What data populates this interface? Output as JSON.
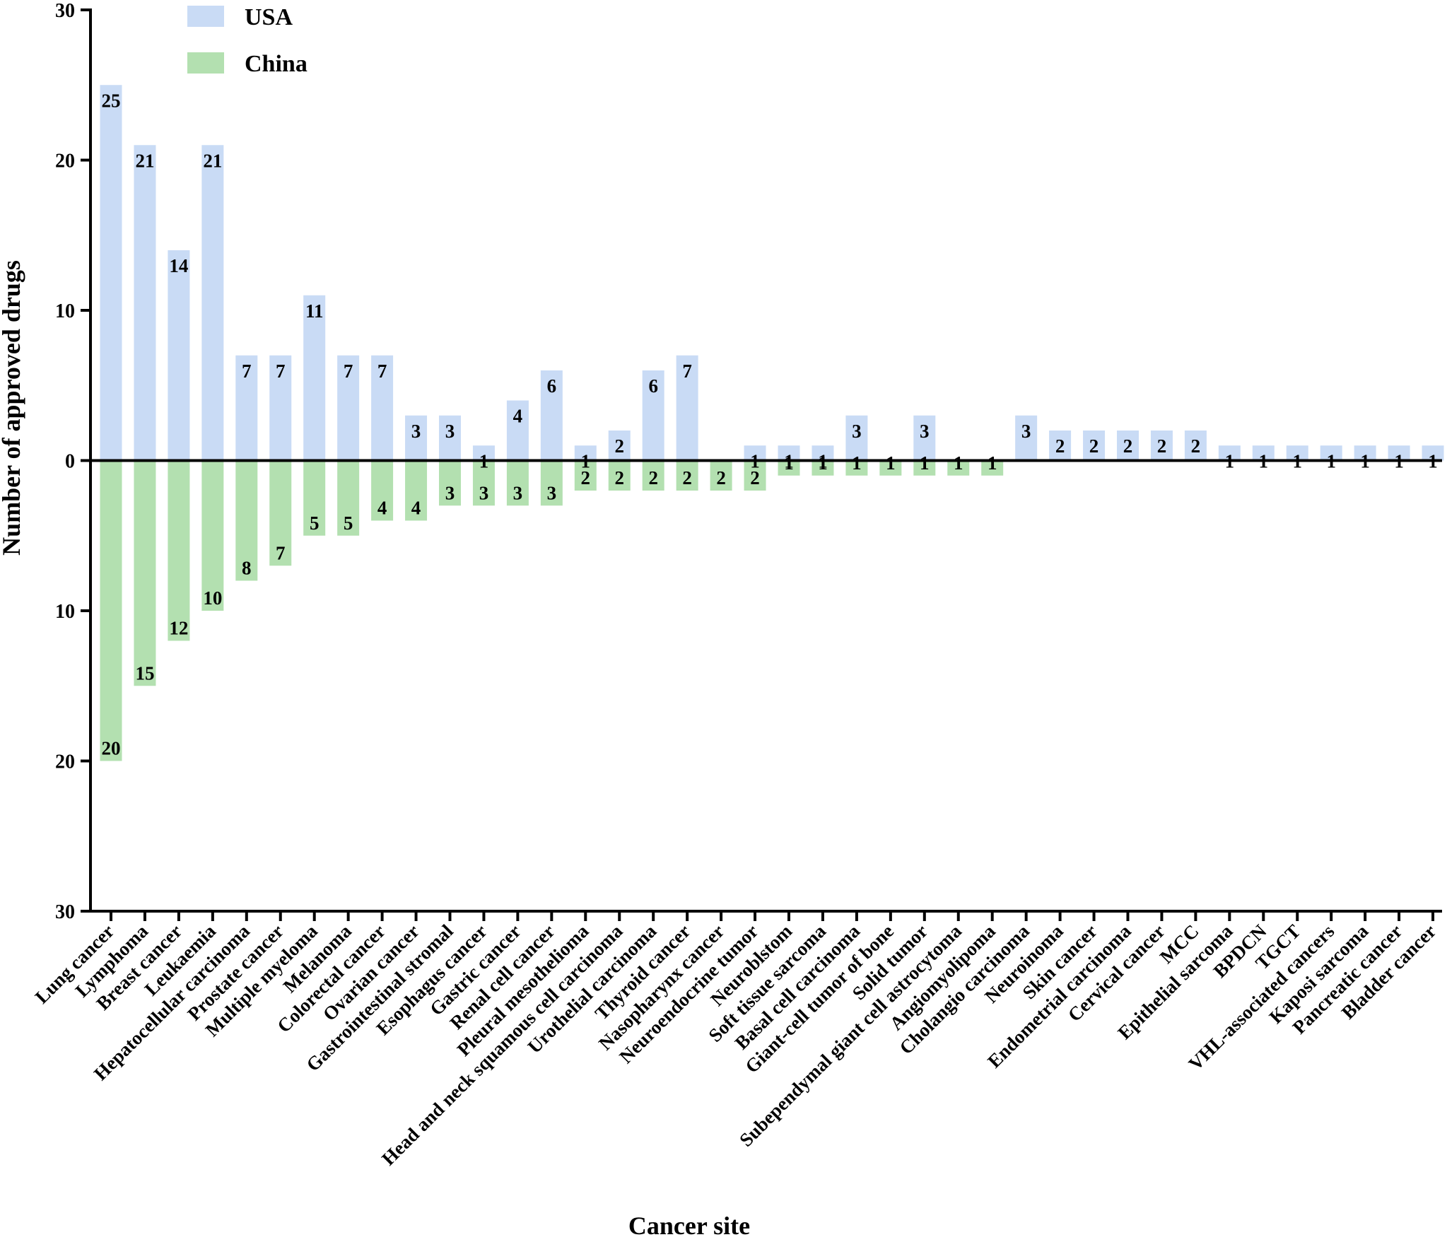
{
  "chart_data": {
    "type": "bar",
    "title": "",
    "xlabel": "Cancer site",
    "ylabel": "Number of approved drugs",
    "ylim": [
      -30,
      30
    ],
    "yticks": [
      {
        "value": 30,
        "label": "30"
      },
      {
        "value": 20,
        "label": "20"
      },
      {
        "value": 10,
        "label": "10"
      },
      {
        "value": 0,
        "label": "0"
      },
      {
        "value": -10,
        "label": "10"
      },
      {
        "value": -20,
        "label": "20"
      },
      {
        "value": -30,
        "label": "30"
      }
    ],
    "legend_position": "top-left",
    "categories": [
      "Lung cancer",
      "Lymphoma",
      "Breast cancer",
      "Leukaemia",
      "Hepatocellular carcinoma",
      "Prostate cancer",
      "Multiple myeloma",
      "Melanoma",
      "Colorectal cancer",
      "Ovarian cancer",
      "Gastrointestinal stromal",
      "Esophagus cancer",
      "Gastric cancer",
      "Renal cell cancer",
      "Pleural mesothelioma",
      "Head and neck squamous cell carcinoma",
      "Urothelial carcinoma",
      "Thyroid cancer",
      "Nasopharynx cancer",
      "Neuroendocrine tumor",
      "Neuroblstom",
      "Soft tissue sarcoma",
      "Basal cell carcinoma",
      "Giant-cell tumor of bone",
      "Solid tumor",
      "Subependymal giant cell astrocytoma",
      "Angiomyolipoma",
      "Cholangio carcinoma",
      "Neuroinoma",
      "Skin cancer",
      "Endometrial carcinoma",
      "Cervical cancer",
      "MCC",
      "Epithelial sarcoma",
      "BPDCN",
      "TGCT",
      "VHL-associated cancers",
      "Kaposi sarcoma",
      "Pancreatic cancer",
      "Bladder cancer"
    ],
    "series": [
      {
        "name": "USA",
        "color": "#c9dbf5",
        "direction": "up",
        "values": [
          25,
          21,
          14,
          21,
          7,
          7,
          11,
          7,
          7,
          3,
          3,
          1,
          4,
          6,
          1,
          2,
          6,
          7,
          0,
          1,
          1,
          1,
          3,
          0,
          3,
          0,
          0,
          3,
          2,
          2,
          2,
          2,
          2,
          1,
          1,
          1,
          1,
          1,
          1,
          1
        ]
      },
      {
        "name": "China",
        "color": "#b3e0b0",
        "direction": "down",
        "values": [
          20,
          15,
          12,
          10,
          8,
          7,
          5,
          5,
          4,
          4,
          3,
          3,
          3,
          3,
          2,
          2,
          2,
          2,
          2,
          2,
          1,
          1,
          1,
          1,
          1,
          1,
          1,
          0,
          0,
          0,
          0,
          0,
          0,
          0,
          0,
          0,
          0,
          0,
          0,
          0
        ]
      }
    ]
  }
}
